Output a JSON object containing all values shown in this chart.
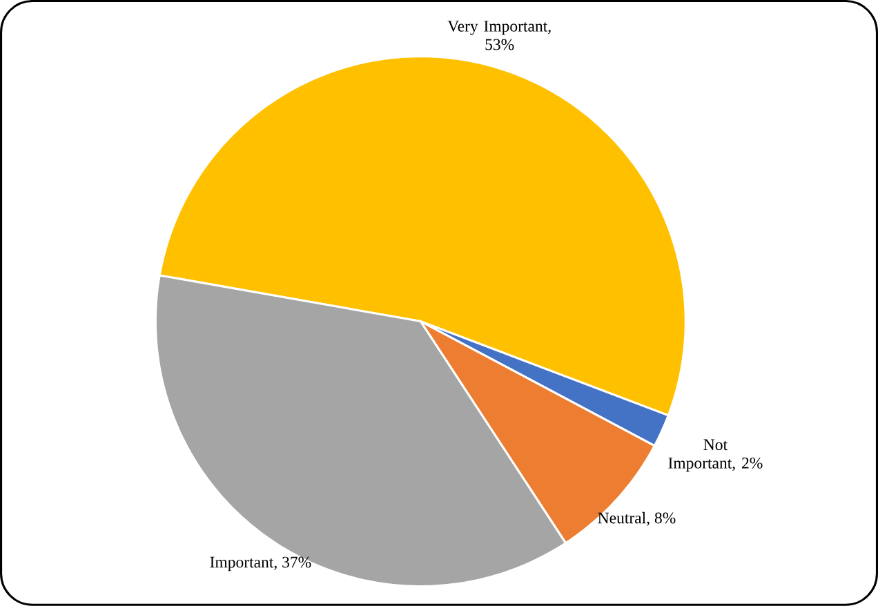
{
  "chart_data": {
    "type": "pie",
    "categories": [
      "Very Important",
      "Not Important",
      "Neutral",
      "Important"
    ],
    "values": [
      53,
      2,
      8,
      37
    ],
    "value_labels": [
      ", 53%",
      ", 2%",
      ", 8%",
      ", 37%"
    ],
    "colors": [
      "#ffc000",
      "#4472c4",
      "#ed7d31",
      "#a5a5a5"
    ]
  }
}
